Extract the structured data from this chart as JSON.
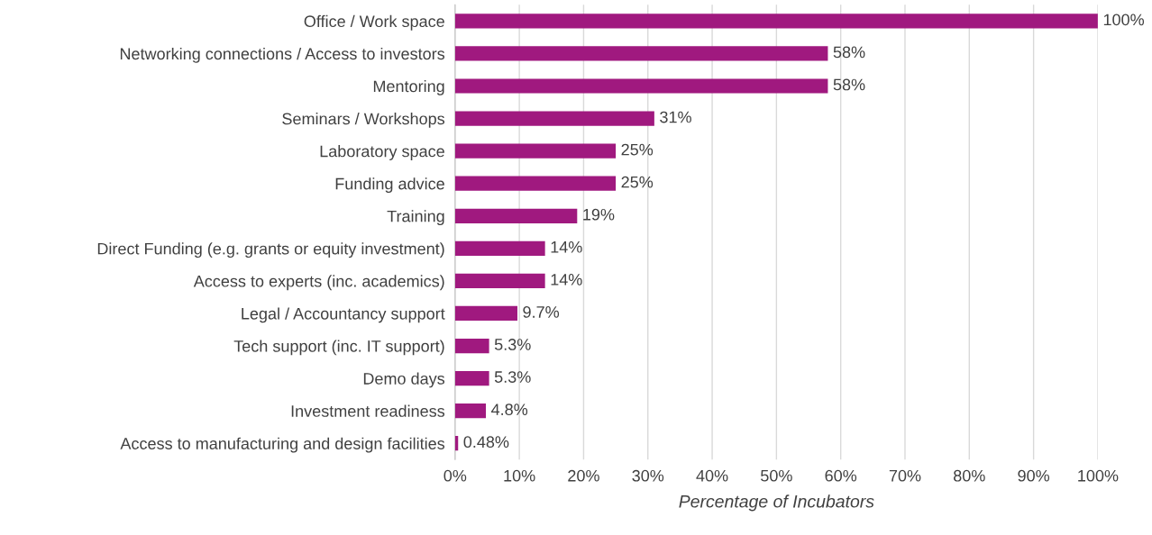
{
  "chart_data": {
    "type": "bar",
    "orientation": "horizontal",
    "xlabel": "Percentage of Incubators",
    "categories": [
      "Office / Work space",
      "Networking connections / Access to investors",
      "Mentoring",
      "Seminars / Workshops",
      "Laboratory space",
      "Funding advice",
      "Training",
      "Direct Funding (e.g. grants or equity investment)",
      "Access to experts (inc. academics)",
      "Legal / Accountancy support",
      "Tech support (inc. IT support)",
      "Demo days",
      "Investment readiness",
      "Access to manufacturing and design facilities"
    ],
    "values": [
      100,
      58,
      58,
      31,
      25,
      25,
      19,
      14,
      14,
      9.7,
      5.3,
      5.3,
      4.8,
      0.48
    ],
    "value_labels": [
      "100%",
      "58%",
      "58%",
      "31%",
      "25%",
      "25%",
      "19%",
      "14%",
      "14%",
      "9.7%",
      "5.3%",
      "5.3%",
      "4.8%",
      "0.48%"
    ],
    "color": "#a0197f",
    "xlim": [
      0,
      100
    ],
    "xticks": [
      {
        "value": 0,
        "label": "0%"
      },
      {
        "value": 10,
        "label": "10%"
      },
      {
        "value": 20,
        "label": "20%"
      },
      {
        "value": 30,
        "label": "30%"
      },
      {
        "value": 40,
        "label": "40%"
      },
      {
        "value": 50,
        "label": "50%"
      },
      {
        "value": 60,
        "label": "60%"
      },
      {
        "value": 70,
        "label": "70%"
      },
      {
        "value": 80,
        "label": "80%"
      },
      {
        "value": 90,
        "label": "90%"
      },
      {
        "value": 100,
        "label": "100%"
      }
    ],
    "grid": "x",
    "legend": false
  }
}
